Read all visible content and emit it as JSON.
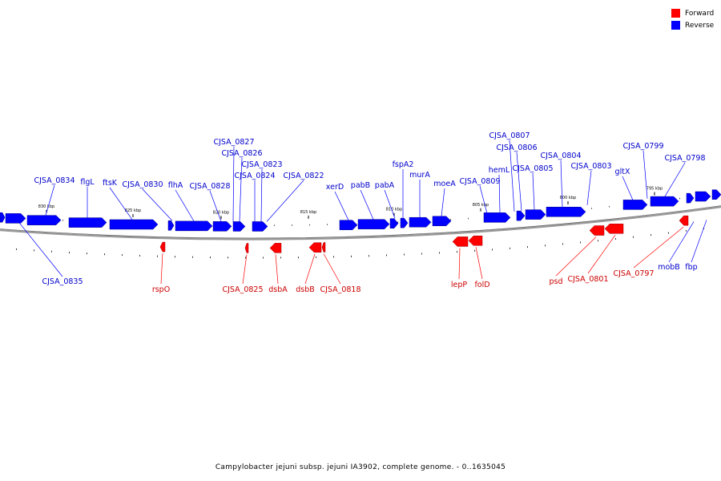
{
  "legend": [
    {
      "label": "Forward",
      "color": "#ff0000"
    },
    {
      "label": "Reverse",
      "color": "#0000ff"
    }
  ],
  "caption": "Campylobacter jejuni subsp. jejuni IA3902, complete genome. - 0..1635045",
  "colors": {
    "forward": "#ff0000",
    "reverse": "#0000ff",
    "backbone": "#999999",
    "text_forward": "#cc0000",
    "text_reverse": "#0000cc"
  },
  "ticks": [
    "830 kbp",
    "825 kbp",
    "820 kbp",
    "815 kbp",
    "810 kbp",
    "805 kbp",
    "800 kbp",
    "795 kbp"
  ],
  "reverse_labels": [
    "CJSA_0835",
    "CJSA_0834",
    "flgL",
    "ftsK",
    "CJSA_0830",
    "flhA",
    "CJSA_0828",
    "CJSA_0827",
    "CJSA_0826",
    "CJSA_0824",
    "CJSA_0823",
    "CJSA_0822",
    "xerD",
    "pabB",
    "pabA",
    "fspA2",
    "murA",
    "moeA",
    "CJSA_0809",
    "hemL",
    "CJSA_0807",
    "CJSA_0806",
    "CJSA_0805",
    "CJSA_0804",
    "CJSA_0803",
    "gltX",
    "CJSA_0799",
    "CJSA_0798",
    "mobB",
    "fbp"
  ],
  "forward_labels": [
    "rspO",
    "CJSA_0825",
    "dsbA",
    "dsbB",
    "CJSA_0818",
    "lepP",
    "folD",
    "psd",
    "CJSA_0801",
    "CJSA_0797"
  ]
}
